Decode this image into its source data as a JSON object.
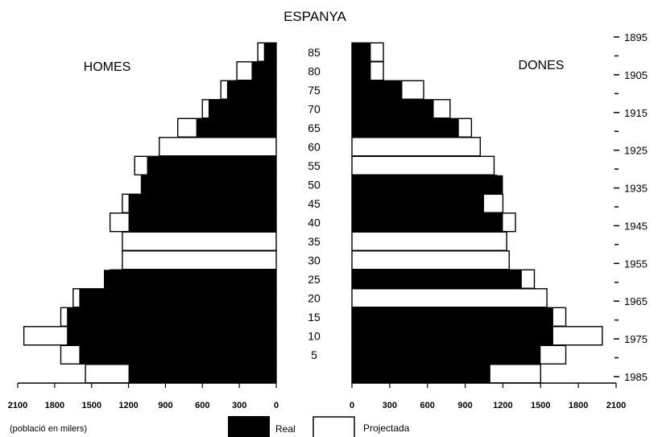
{
  "chart_data": {
    "type": "bar",
    "title": "ESPANYA",
    "left_label": "HOMES",
    "right_label": "DONES",
    "unit_note": "(població en milers)",
    "legend": {
      "real": "Real",
      "projected": "Projectada"
    },
    "colors": {
      "real": "#000000",
      "projected": "#ffffff",
      "outline": "#000000"
    },
    "age_groups": [
      0,
      5,
      10,
      15,
      20,
      25,
      30,
      35,
      40,
      45,
      50,
      55,
      60,
      65,
      70,
      75,
      80,
      85,
      90
    ],
    "age_labels": [
      "",
      "5",
      "10",
      "15",
      "20",
      "25",
      "30",
      "35",
      "40",
      "45",
      "50",
      "55",
      "60",
      "65",
      "70",
      "75",
      "80",
      "85",
      ""
    ],
    "x_ticks": [
      0,
      300,
      600,
      900,
      1200,
      1500,
      1800,
      2100
    ],
    "x_tick_labels": [
      "0",
      "300",
      "600",
      "900",
      "1200",
      "1500",
      "1800",
      "2100"
    ],
    "year_ticks": [
      "1895",
      "1905",
      "1915",
      "1925",
      "1935",
      "1945",
      "1955",
      "1965",
      "1975",
      "1985"
    ],
    "xlim": [
      0,
      2100
    ],
    "series": [
      {
        "name": "HOMES",
        "real": [
          1200,
          1600,
          1700,
          1700,
          1600,
          1400,
          0,
          0,
          1200,
          1200,
          1100,
          1050,
          0,
          650,
          550,
          400,
          200,
          100,
          0
        ],
        "projected": [
          1550,
          1750,
          2050,
          1750,
          1650,
          1350,
          1250,
          1250,
          1350,
          1250,
          1050,
          1150,
          950,
          800,
          600,
          450,
          320,
          150,
          0
        ]
      },
      {
        "name": "DONES",
        "real": [
          1100,
          1500,
          1600,
          1600,
          0,
          1350,
          0,
          0,
          1200,
          1050,
          1200,
          0,
          0,
          850,
          650,
          400,
          150,
          150,
          0
        ],
        "projected": [
          1500,
          1700,
          1990,
          1700,
          1550,
          1450,
          1250,
          1230,
          1300,
          1200,
          1150,
          1130,
          1020,
          950,
          780,
          570,
          250,
          250,
          0
        ]
      }
    ]
  }
}
